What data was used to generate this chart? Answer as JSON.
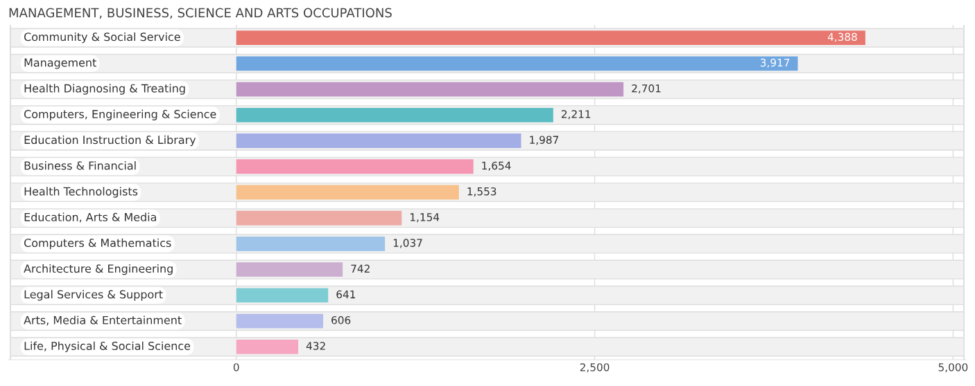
{
  "chart_data": {
    "type": "bar",
    "orientation": "horizontal",
    "title": "MANAGEMENT, BUSINESS, SCIENCE AND ARTS OCCUPATIONS",
    "categories": [
      "Community & Social Service",
      "Management",
      "Health Diagnosing & Treating",
      "Computers, Engineering & Science",
      "Education Instruction & Library",
      "Business & Financial",
      "Health Technologists",
      "Education, Arts & Media",
      "Computers & Mathematics",
      "Architecture & Engineering",
      "Legal Services & Support",
      "Arts, Media & Entertainment",
      "Life, Physical & Social Science"
    ],
    "values": [
      4388,
      3917,
      2701,
      2211,
      1987,
      1654,
      1553,
      1154,
      1037,
      742,
      641,
      606,
      432
    ],
    "colors": [
      "#e8776f",
      "#6fa6e0",
      "#c097c4",
      "#5bbcc4",
      "#a4aee6",
      "#f596b3",
      "#f8c18c",
      "#eeaaa5",
      "#9fc4ea",
      "#ccaed0",
      "#7fcdd4",
      "#b4bdec",
      "#f7a6c2"
    ],
    "xlim": [
      -1590,
      5090
    ],
    "xticks": [
      {
        "value": 0,
        "label": "0"
      },
      {
        "value": 2500,
        "label": "2,500"
      },
      {
        "value": 5000,
        "label": "5,000"
      }
    ],
    "value_labels": [
      "4,388",
      "3,917",
      "2,701",
      "2,211",
      "1,987",
      "1,654",
      "1,553",
      "1,154",
      "1,037",
      "742",
      "641",
      "606",
      "432"
    ],
    "grid": "x",
    "legend": false
  }
}
